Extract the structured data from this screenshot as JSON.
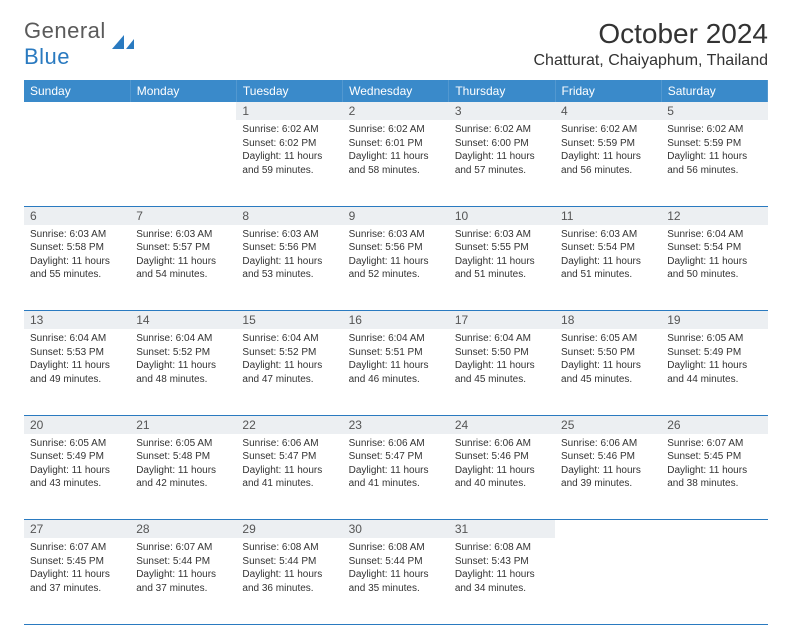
{
  "logo": {
    "text1": "General",
    "text2": "Blue"
  },
  "title": "October 2024",
  "location": "Chatturat, Chaiyaphum, Thailand",
  "colors": {
    "header_bg": "#3a8aca",
    "header_text": "#ffffff",
    "daynum_bg": "#eceff2",
    "border": "#2a7ac0",
    "logo_gray": "#5a5a5a",
    "logo_blue": "#2a7ac0"
  },
  "weekdays": [
    "Sunday",
    "Monday",
    "Tuesday",
    "Wednesday",
    "Thursday",
    "Friday",
    "Saturday"
  ],
  "weeks": [
    [
      null,
      null,
      {
        "d": "1",
        "sr": "6:02 AM",
        "ss": "6:02 PM",
        "dl": "11 hours and 59 minutes."
      },
      {
        "d": "2",
        "sr": "6:02 AM",
        "ss": "6:01 PM",
        "dl": "11 hours and 58 minutes."
      },
      {
        "d": "3",
        "sr": "6:02 AM",
        "ss": "6:00 PM",
        "dl": "11 hours and 57 minutes."
      },
      {
        "d": "4",
        "sr": "6:02 AM",
        "ss": "5:59 PM",
        "dl": "11 hours and 56 minutes."
      },
      {
        "d": "5",
        "sr": "6:02 AM",
        "ss": "5:59 PM",
        "dl": "11 hours and 56 minutes."
      }
    ],
    [
      {
        "d": "6",
        "sr": "6:03 AM",
        "ss": "5:58 PM",
        "dl": "11 hours and 55 minutes."
      },
      {
        "d": "7",
        "sr": "6:03 AM",
        "ss": "5:57 PM",
        "dl": "11 hours and 54 minutes."
      },
      {
        "d": "8",
        "sr": "6:03 AM",
        "ss": "5:56 PM",
        "dl": "11 hours and 53 minutes."
      },
      {
        "d": "9",
        "sr": "6:03 AM",
        "ss": "5:56 PM",
        "dl": "11 hours and 52 minutes."
      },
      {
        "d": "10",
        "sr": "6:03 AM",
        "ss": "5:55 PM",
        "dl": "11 hours and 51 minutes."
      },
      {
        "d": "11",
        "sr": "6:03 AM",
        "ss": "5:54 PM",
        "dl": "11 hours and 51 minutes."
      },
      {
        "d": "12",
        "sr": "6:04 AM",
        "ss": "5:54 PM",
        "dl": "11 hours and 50 minutes."
      }
    ],
    [
      {
        "d": "13",
        "sr": "6:04 AM",
        "ss": "5:53 PM",
        "dl": "11 hours and 49 minutes."
      },
      {
        "d": "14",
        "sr": "6:04 AM",
        "ss": "5:52 PM",
        "dl": "11 hours and 48 minutes."
      },
      {
        "d": "15",
        "sr": "6:04 AM",
        "ss": "5:52 PM",
        "dl": "11 hours and 47 minutes."
      },
      {
        "d": "16",
        "sr": "6:04 AM",
        "ss": "5:51 PM",
        "dl": "11 hours and 46 minutes."
      },
      {
        "d": "17",
        "sr": "6:04 AM",
        "ss": "5:50 PM",
        "dl": "11 hours and 45 minutes."
      },
      {
        "d": "18",
        "sr": "6:05 AM",
        "ss": "5:50 PM",
        "dl": "11 hours and 45 minutes."
      },
      {
        "d": "19",
        "sr": "6:05 AM",
        "ss": "5:49 PM",
        "dl": "11 hours and 44 minutes."
      }
    ],
    [
      {
        "d": "20",
        "sr": "6:05 AM",
        "ss": "5:49 PM",
        "dl": "11 hours and 43 minutes."
      },
      {
        "d": "21",
        "sr": "6:05 AM",
        "ss": "5:48 PM",
        "dl": "11 hours and 42 minutes."
      },
      {
        "d": "22",
        "sr": "6:06 AM",
        "ss": "5:47 PM",
        "dl": "11 hours and 41 minutes."
      },
      {
        "d": "23",
        "sr": "6:06 AM",
        "ss": "5:47 PM",
        "dl": "11 hours and 41 minutes."
      },
      {
        "d": "24",
        "sr": "6:06 AM",
        "ss": "5:46 PM",
        "dl": "11 hours and 40 minutes."
      },
      {
        "d": "25",
        "sr": "6:06 AM",
        "ss": "5:46 PM",
        "dl": "11 hours and 39 minutes."
      },
      {
        "d": "26",
        "sr": "6:07 AM",
        "ss": "5:45 PM",
        "dl": "11 hours and 38 minutes."
      }
    ],
    [
      {
        "d": "27",
        "sr": "6:07 AM",
        "ss": "5:45 PM",
        "dl": "11 hours and 37 minutes."
      },
      {
        "d": "28",
        "sr": "6:07 AM",
        "ss": "5:44 PM",
        "dl": "11 hours and 37 minutes."
      },
      {
        "d": "29",
        "sr": "6:08 AM",
        "ss": "5:44 PM",
        "dl": "11 hours and 36 minutes."
      },
      {
        "d": "30",
        "sr": "6:08 AM",
        "ss": "5:44 PM",
        "dl": "11 hours and 35 minutes."
      },
      {
        "d": "31",
        "sr": "6:08 AM",
        "ss": "5:43 PM",
        "dl": "11 hours and 34 minutes."
      },
      null,
      null
    ]
  ],
  "labels": {
    "sunrise": "Sunrise:",
    "sunset": "Sunset:",
    "daylight": "Daylight:"
  }
}
